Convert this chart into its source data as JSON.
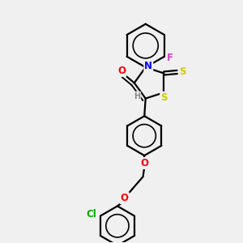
{
  "background_color": "#f0f0f0",
  "atom_colors": {
    "S": "#cccc00",
    "N": "#0000ff",
    "O": "#ff0000",
    "F": "#cc44cc",
    "Cl": "#00aa00",
    "H": "#888888",
    "C": "#000000"
  },
  "bond_color": "#000000",
  "bond_width": 1.6,
  "dbo": 0.07,
  "font_size": 8.5
}
